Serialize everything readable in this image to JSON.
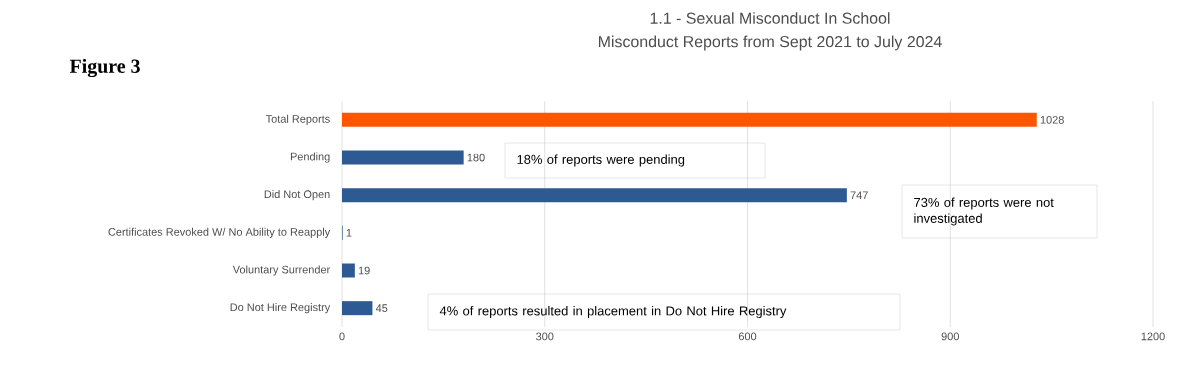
{
  "chart_data": {
    "type": "bar",
    "orientation": "horizontal",
    "title": "1.1 - Sexual Misconduct In School",
    "subtitle": "Misconduct Reports from Sept 2021 to July 2024",
    "categories": [
      "Total Reports",
      "Pending",
      "Did Not Open",
      "Certificates Revoked W/ No Ability to Reapply",
      "Voluntary Surrender",
      "Do Not Hire Registry"
    ],
    "values": [
      1028,
      180,
      747,
      1,
      19,
      45
    ],
    "colors": [
      "#ff5500",
      "#2e5a94",
      "#2e5a94",
      "#2e5a94",
      "#2e5a94",
      "#2e5a94"
    ],
    "xlim": [
      0,
      1200
    ],
    "xticks": [
      0,
      300,
      600,
      900,
      1200
    ],
    "grid": "x",
    "data_labels": true,
    "annotations": [
      "Figure 3",
      "18% of reports were pending",
      "73% of reports were not investigated",
      "4% of reports resulted in placement in Do Not Hire Registry"
    ]
  }
}
